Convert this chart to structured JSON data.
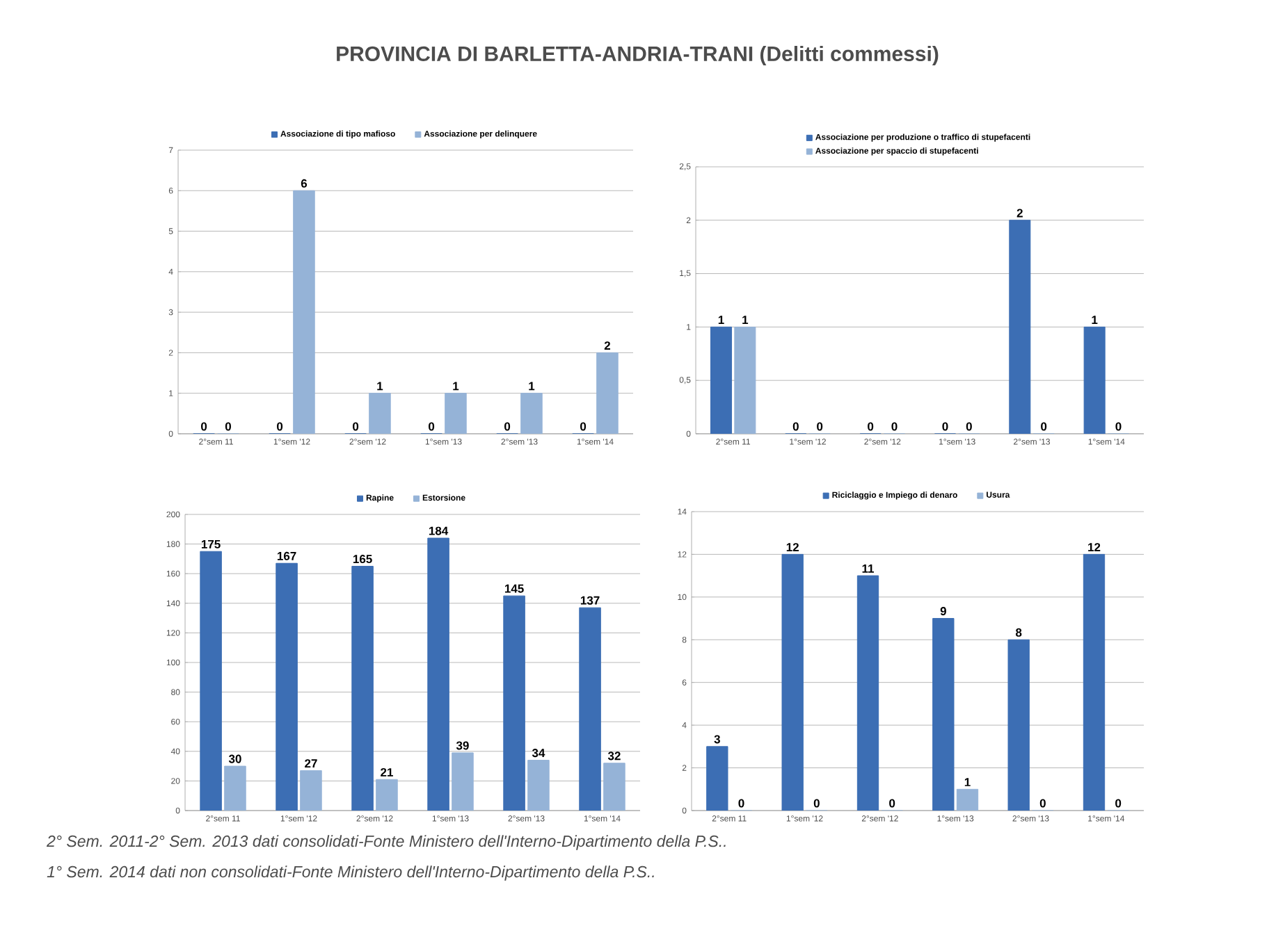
{
  "chart_data": [
    {
      "type": "bar",
      "title": "PROVINCIA DI BARLETTA-ANDRIA-TRANI (Delitti commessi)",
      "categories": [
        "2°sem 11",
        "1°sem '12",
        "2°sem '12",
        "1°sem '13",
        "2°sem '13",
        "1°sem '14"
      ],
      "series": [
        {
          "name": "Associazione di tipo mafioso",
          "color": "#3c6eb4",
          "values": [
            0,
            0,
            0,
            0,
            0,
            0
          ]
        },
        {
          "name": "Associazione per delinquere",
          "color": "#95b3d7",
          "values": [
            0,
            6,
            1,
            1,
            1,
            2
          ]
        }
      ],
      "ylim": [
        0,
        7
      ],
      "yticks": [
        0,
        1,
        2,
        3,
        4,
        5,
        6,
        7
      ],
      "grid": "y",
      "legend": "top",
      "data_labels": true
    },
    {
      "type": "bar",
      "categories": [
        "2°sem 11",
        "1°sem '12",
        "2°sem '12",
        "1°sem '13",
        "2°sem '13",
        "1°sem '14"
      ],
      "series": [
        {
          "name": "Associazione per produzione o traffico di stupefacenti",
          "color": "#3c6eb4",
          "values": [
            1,
            0,
            0,
            0,
            2,
            1
          ]
        },
        {
          "name": "Associazione per spaccio di stupefacenti",
          "color": "#95b3d7",
          "values": [
            1,
            0,
            0,
            0,
            0,
            0
          ]
        }
      ],
      "ylim": [
        0,
        2.5
      ],
      "yticks": [
        0,
        {
          "value": 0.5,
          "label": "0,5"
        },
        1,
        {
          "value": 1.5,
          "label": "1,5"
        },
        2,
        {
          "value": 2.5,
          "label": "2,5"
        }
      ],
      "grid": "y",
      "legend": "top",
      "data_labels": true
    },
    {
      "type": "bar",
      "categories": [
        "2°sem 11",
        "1°sem '12",
        "2°sem '12",
        "1°sem '13",
        "2°sem '13",
        "1°sem '14"
      ],
      "series": [
        {
          "name": "Rapine",
          "color": "#3c6eb4",
          "values": [
            175,
            167,
            165,
            184,
            145,
            137
          ]
        },
        {
          "name": "Estorsione",
          "color": "#95b3d7",
          "values": [
            30,
            27,
            21,
            39,
            34,
            32
          ]
        }
      ],
      "ylim": [
        0,
        200
      ],
      "yticks": [
        0,
        20,
        40,
        60,
        80,
        100,
        120,
        140,
        160,
        180,
        200
      ],
      "grid": "y",
      "legend": "top",
      "data_labels": true,
      "annotations": [
        "2° Sem. 2011-2° Sem. 2013 dati consolidati-Fonte Ministero dell'Interno-Dipartimento della P.S..",
        "1° Sem. 2014 dati non consolidati-Fonte Ministero dell'Interno-Dipartimento della P.S.."
      ]
    },
    {
      "type": "bar",
      "categories": [
        "2°sem 11",
        "1°sem '12",
        "2°sem '12",
        "1°sem '13",
        "2°sem '13",
        "1°sem '14"
      ],
      "series": [
        {
          "name": "Riciclaggio e Impiego di denaro",
          "color": "#3c6eb4",
          "values": [
            3,
            12,
            11,
            9,
            8,
            12
          ]
        },
        {
          "name": "Usura",
          "color": "#95b3d7",
          "values": [
            0,
            0,
            0,
            1,
            0,
            0
          ]
        }
      ],
      "ylim": [
        0,
        14
      ],
      "yticks": [
        0,
        2,
        4,
        6,
        8,
        10,
        12,
        14
      ],
      "grid": "y",
      "legend": "top",
      "data_labels": true
    }
  ]
}
